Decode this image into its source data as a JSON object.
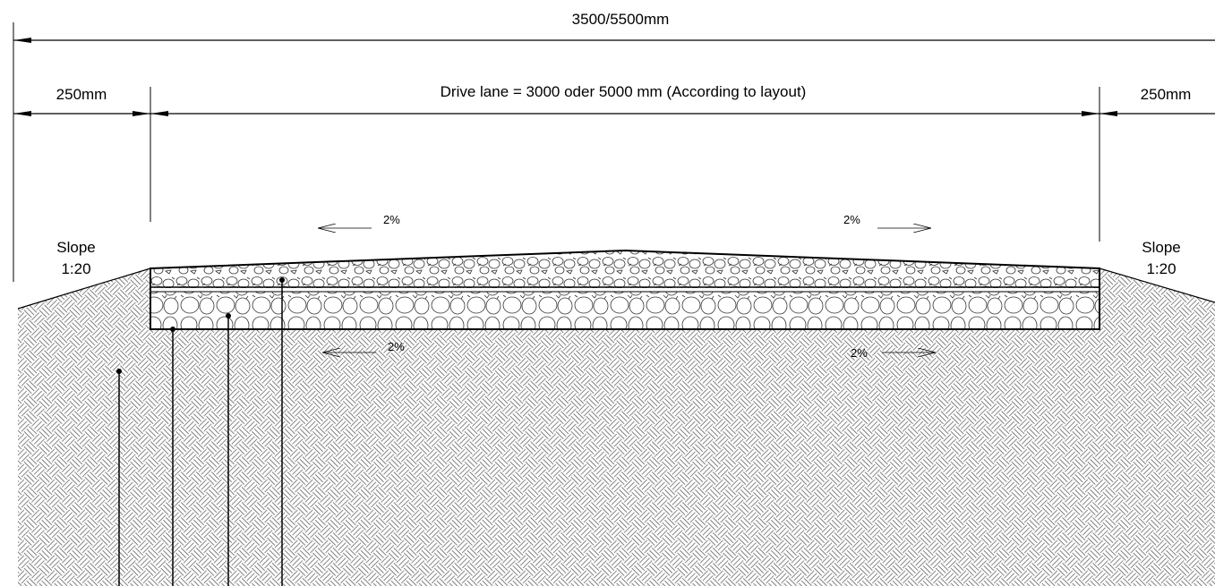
{
  "dimensions": {
    "overall": "3500/5500mm",
    "shoulder_left": "250mm",
    "drive_lane": "Drive lane = 3000 oder 5000 mm (According to layout)",
    "shoulder_right": "250mm"
  },
  "slopes": {
    "left": [
      "Slope",
      "1:20"
    ],
    "right": [
      "Slope",
      "1:20"
    ]
  },
  "crossfall": {
    "surface_left": "2%",
    "surface_right": "2%",
    "base_left": "2%",
    "base_right": "2%"
  }
}
